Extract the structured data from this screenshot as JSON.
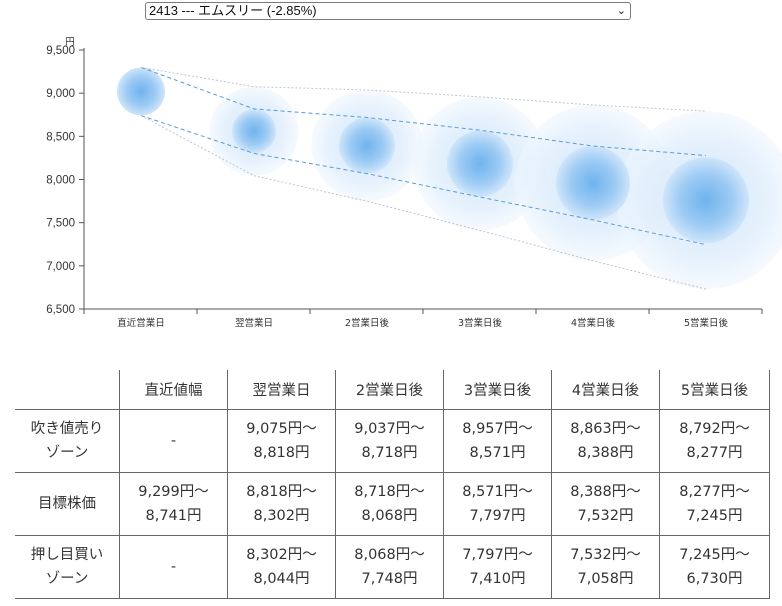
{
  "selector": {
    "value": "2413 --- エムスリー (-2.85%)"
  },
  "chart_data": {
    "type": "scatter",
    "y_unit": "円",
    "ylim": [
      6500,
      9500
    ],
    "yticks": [
      "9,500",
      "9,000",
      "8,500",
      "8,000",
      "7,500",
      "7,000",
      "6,500"
    ],
    "ytick_values": [
      9500,
      9000,
      8500,
      8000,
      7500,
      7000,
      6500
    ],
    "categories": [
      "直近営業日",
      "翌営業日",
      "2営業日後",
      "3営業日後",
      "4営業日後",
      "5営業日後"
    ],
    "center": [
      9020,
      8560,
      8393,
      8184,
      7960,
      7761
    ],
    "target_range": [
      [
        9299,
        8741
      ],
      [
        8818,
        8302
      ],
      [
        8718,
        8068
      ],
      [
        8571,
        7797
      ],
      [
        8388,
        7532
      ],
      [
        8277,
        7245
      ]
    ],
    "outer_range": [
      [
        9299,
        8741
      ],
      [
        9075,
        8044
      ],
      [
        9037,
        7748
      ],
      [
        8957,
        7410
      ],
      [
        8863,
        7058
      ],
      [
        8792,
        6730
      ]
    ]
  },
  "table": {
    "headers": [
      "",
      "直近値幅",
      "翌営業日",
      "2営業日後",
      "3営業日後",
      "4営業日後",
      "5営業日後"
    ],
    "rows": [
      {
        "label": [
          "吹き値売り",
          "ゾーン"
        ],
        "cells": [
          [
            "-"
          ],
          [
            "9,075円〜",
            "8,818円"
          ],
          [
            "9,037円〜",
            "8,718円"
          ],
          [
            "8,957円〜",
            "8,571円"
          ],
          [
            "8,863円〜",
            "8,388円"
          ],
          [
            "8,792円〜",
            "8,277円"
          ]
        ]
      },
      {
        "label": [
          "目標株価"
        ],
        "cells": [
          [
            "9,299円〜",
            "8,741円"
          ],
          [
            "8,818円〜",
            "8,302円"
          ],
          [
            "8,718円〜",
            "8,068円"
          ],
          [
            "8,571円〜",
            "7,797円"
          ],
          [
            "8,388円〜",
            "7,532円"
          ],
          [
            "8,277円〜",
            "7,245円"
          ]
        ]
      },
      {
        "label": [
          "押し目買い",
          "ゾーン"
        ],
        "cells": [
          [
            "-"
          ],
          [
            "8,302円〜",
            "8,044円"
          ],
          [
            "8,068円〜",
            "7,748円"
          ],
          [
            "7,797円〜",
            "7,410円"
          ],
          [
            "7,532円〜",
            "7,058円"
          ],
          [
            "7,245円〜",
            "6,730円"
          ]
        ]
      }
    ]
  }
}
